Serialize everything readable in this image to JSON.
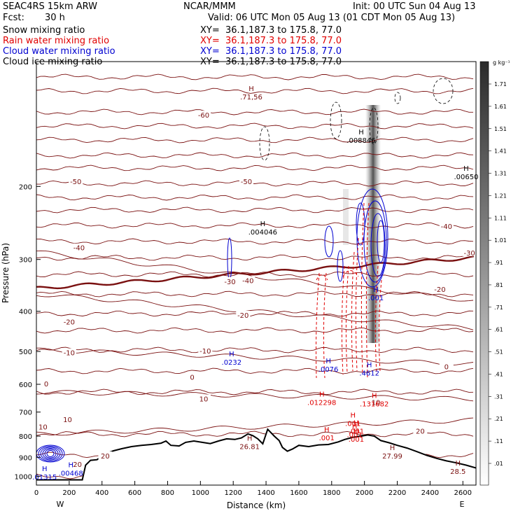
{
  "header": {
    "model": "SEAC4RS 15km ARW",
    "center": "NCAR/MMM",
    "init": "Init: 00 UTC Sun 04 Aug 13",
    "fcst_label": "Fcst:",
    "fcst_value": "30 h",
    "valid": "Valid: 06 UTC Mon 05 Aug 13 (01 CDT Mon 05 Aug 13)",
    "fields": [
      {
        "name": "Snow mixing ratio",
        "xy": "XY=  36.1,187.3 to 175.8, 77.0",
        "color": "#000000"
      },
      {
        "name": "Rain water mixing ratio",
        "xy": "XY=  36.1,187.3 to 175.8, 77.0",
        "color": "#e00000"
      },
      {
        "name": "Cloud water mixing ratio",
        "xy": "XY=  36.1,187.3 to 175.8, 77.0",
        "color": "#0000d0"
      },
      {
        "name": "Cloud ice mixing ratio",
        "xy": "XY=  36.1,187.3 to 175.8, 77.0",
        "color": "#000000"
      }
    ]
  },
  "colors": {
    "temperature": "#7a1010",
    "freezing": "#7a1010",
    "rain": "#e00000",
    "cloud": "#0000d0",
    "terrain": "#000000"
  },
  "colorbar": {
    "unit": "g kg⁻¹",
    "labels": [
      "1.71",
      "1.61",
      "1.51",
      "1.41",
      "1.31",
      "1.21",
      "1.11",
      "1.01",
      ".91",
      ".81",
      ".71",
      ".61",
      ".51",
      ".41",
      ".31",
      ".21",
      ".11",
      ".01"
    ]
  },
  "chart_data": {
    "type": "cross-section",
    "xlabel": "Distance (km)",
    "ylabel": "Pressure (hPa)",
    "xlim": [
      0,
      2680
    ],
    "ylim": [
      1050,
      100
    ],
    "y_log": true,
    "xticks": [
      0,
      200,
      400,
      600,
      800,
      1000,
      1200,
      1400,
      1600,
      1800,
      2000,
      2200,
      2400,
      2600
    ],
    "yticks": [
      200,
      300,
      400,
      500,
      600,
      700,
      800,
      900,
      1000
    ],
    "x_end_labels": {
      "left": "W",
      "right": "E"
    },
    "terrain": [
      [
        0,
        1020
      ],
      [
        280,
        1020
      ],
      [
        300,
        940
      ],
      [
        330,
        915
      ],
      [
        370,
        912
      ],
      [
        410,
        885
      ],
      [
        470,
        868
      ],
      [
        520,
        858
      ],
      [
        580,
        848
      ],
      [
        640,
        842
      ],
      [
        700,
        838
      ],
      [
        760,
        832
      ],
      [
        790,
        822
      ],
      [
        820,
        842
      ],
      [
        870,
        845
      ],
      [
        910,
        828
      ],
      [
        960,
        822
      ],
      [
        1010,
        828
      ],
      [
        1060,
        834
      ],
      [
        1110,
        822
      ],
      [
        1160,
        812
      ],
      [
        1210,
        815
      ],
      [
        1250,
        808
      ],
      [
        1290,
        790
      ],
      [
        1320,
        798
      ],
      [
        1350,
        812
      ],
      [
        1380,
        835
      ],
      [
        1410,
        770
      ],
      [
        1450,
        800
      ],
      [
        1480,
        820
      ],
      [
        1500,
        852
      ],
      [
        1530,
        870
      ],
      [
        1560,
        860
      ],
      [
        1600,
        842
      ],
      [
        1660,
        848
      ],
      [
        1720,
        840
      ],
      [
        1780,
        838
      ],
      [
        1840,
        826
      ],
      [
        1880,
        815
      ],
      [
        1930,
        805
      ],
      [
        1980,
        800
      ],
      [
        2020,
        795
      ],
      [
        2060,
        800
      ],
      [
        2100,
        820
      ],
      [
        2150,
        830
      ],
      [
        2200,
        842
      ],
      [
        2260,
        855
      ],
      [
        2320,
        872
      ],
      [
        2380,
        890
      ],
      [
        2440,
        905
      ],
      [
        2500,
        918
      ],
      [
        2560,
        928
      ],
      [
        2620,
        940
      ],
      [
        2680,
        955
      ]
    ],
    "temperature_labels": [
      {
        "x": 1020,
        "p": 135,
        "t": "-60"
      },
      {
        "x": 1280,
        "p": 195,
        "t": "-50"
      },
      {
        "x": 240,
        "p": 195,
        "t": "-50"
      },
      {
        "x": 2500,
        "p": 250,
        "t": "-40"
      },
      {
        "x": 260,
        "p": 282,
        "t": "-40"
      },
      {
        "x": 1290,
        "p": 338,
        "t": "-40"
      },
      {
        "x": 2640,
        "p": 290,
        "t": "-30"
      },
      {
        "x": 1180,
        "p": 340,
        "t": "-30"
      },
      {
        "x": 2460,
        "p": 355,
        "t": "-20"
      },
      {
        "x": 1260,
        "p": 410,
        "t": "-20"
      },
      {
        "x": 200,
        "p": 425,
        "t": "-20"
      },
      {
        "x": 1030,
        "p": 500,
        "t": "-10"
      },
      {
        "x": 200,
        "p": 505,
        "t": "-10"
      },
      {
        "x": 2500,
        "p": 545,
        "t": "0"
      },
      {
        "x": 950,
        "p": 578,
        "t": "0"
      },
      {
        "x": 60,
        "p": 600,
        "t": "0"
      },
      {
        "x": 2070,
        "p": 665,
        "t": "10"
      },
      {
        "x": 1020,
        "p": 652,
        "t": "10"
      },
      {
        "x": 190,
        "p": 732,
        "t": "10"
      },
      {
        "x": 40,
        "p": 762,
        "t": "10"
      },
      {
        "x": 2340,
        "p": 780,
        "t": "20"
      },
      {
        "x": 250,
        "p": 938,
        "t": "20"
      },
      {
        "x": 420,
        "p": 895,
        "t": "20"
      }
    ],
    "extrema_labels": [
      {
        "x": 1310,
        "p": 122,
        "t": ".71,56",
        "kind": "temp"
      },
      {
        "x": 1980,
        "p": 155,
        "t": ".008846",
        "kind": "snow"
      },
      {
        "x": 2620,
        "p": 190,
        "t": ".00650",
        "kind": "snow"
      },
      {
        "x": 1380,
        "p": 258,
        "t": ".004046",
        "kind": "snow"
      },
      {
        "x": 2070,
        "p": 372,
        "t": ".001",
        "kind": "cloud"
      },
      {
        "x": 1190,
        "p": 532,
        "t": ".0232",
        "kind": "cloud"
      },
      {
        "x": 1780,
        "p": 553,
        "t": ".0076",
        "kind": "cloud"
      },
      {
        "x": 2030,
        "p": 565,
        "t": ".4612",
        "kind": "cloud"
      },
      {
        "x": 1740,
        "p": 665,
        "t": ".012298",
        "kind": "rain"
      },
      {
        "x": 2060,
        "p": 670,
        "t": ".131682",
        "kind": "rain"
      },
      {
        "x": 1930,
        "p": 748,
        "t": ".001",
        "kind": "rain"
      },
      {
        "x": 1950,
        "p": 780,
        "t": ".001",
        "kind": "rain"
      },
      {
        "x": 1940,
        "p": 796,
        "t": ".001",
        "kind": "rain"
      },
      {
        "x": 1770,
        "p": 810,
        "t": ".001",
        "kind": "rain"
      },
      {
        "x": 1950,
        "p": 815,
        "t": ".001",
        "kind": "rain"
      },
      {
        "x": 1300,
        "p": 850,
        "t": "26.81",
        "kind": "temp"
      },
      {
        "x": 2170,
        "p": 895,
        "t": "27.99",
        "kind": "temp"
      },
      {
        "x": 2570,
        "p": 975,
        "t": "28.5",
        "kind": "temp"
      },
      {
        "x": 50,
        "p": 1007,
        "t": ".01315",
        "kind": "cloud"
      },
      {
        "x": 210,
        "p": 985,
        "t": ".00468",
        "kind": "cloud"
      }
    ]
  }
}
